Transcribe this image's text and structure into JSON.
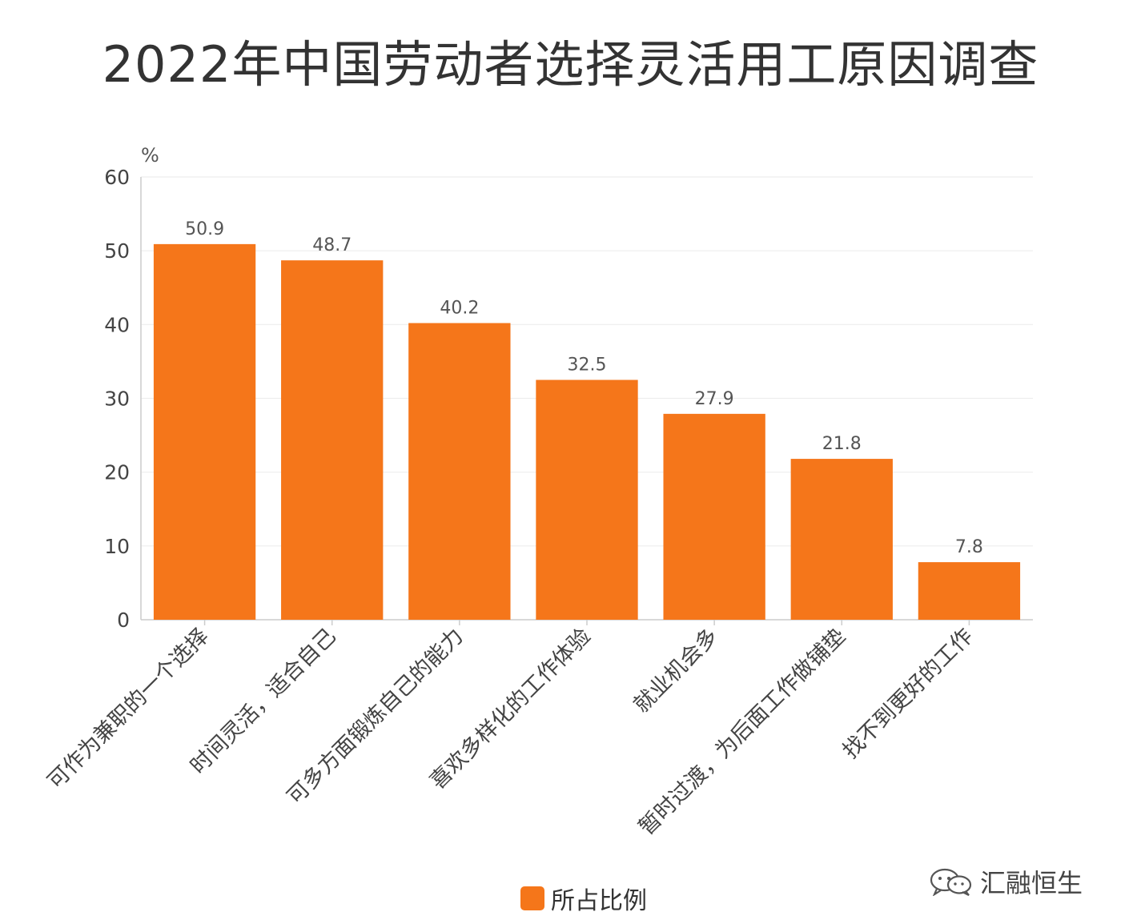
{
  "chart_data": {
    "type": "bar",
    "title": "2022年中国劳动者选择灵活用工原因调查",
    "ylabel": "%",
    "xlabel": "",
    "ylim": [
      0,
      60
    ],
    "yticks": [
      0,
      10,
      20,
      30,
      40,
      50,
      60
    ],
    "grid": true,
    "legend_position": "bottom",
    "categories": [
      "可作为兼职的一个选择",
      "时间灵活，适合自己",
      "可多方面锻炼自己的能力",
      "喜欢多样化的工作体验",
      "就业机会多",
      "暂时过渡，为后面工作做铺垫",
      "找不到更好的工作"
    ],
    "series": [
      {
        "name": "所占比例",
        "color": "#f5761a",
        "values": [
          50.9,
          48.7,
          40.2,
          32.5,
          27.9,
          21.8,
          7.8
        ]
      }
    ]
  },
  "watermark": {
    "text": "汇融恒生",
    "icon": "wechat-icon"
  },
  "colors": {
    "bar": "#f5761a",
    "grid": "#eeeeee",
    "axis": "#cccccc",
    "text": "#333333"
  }
}
